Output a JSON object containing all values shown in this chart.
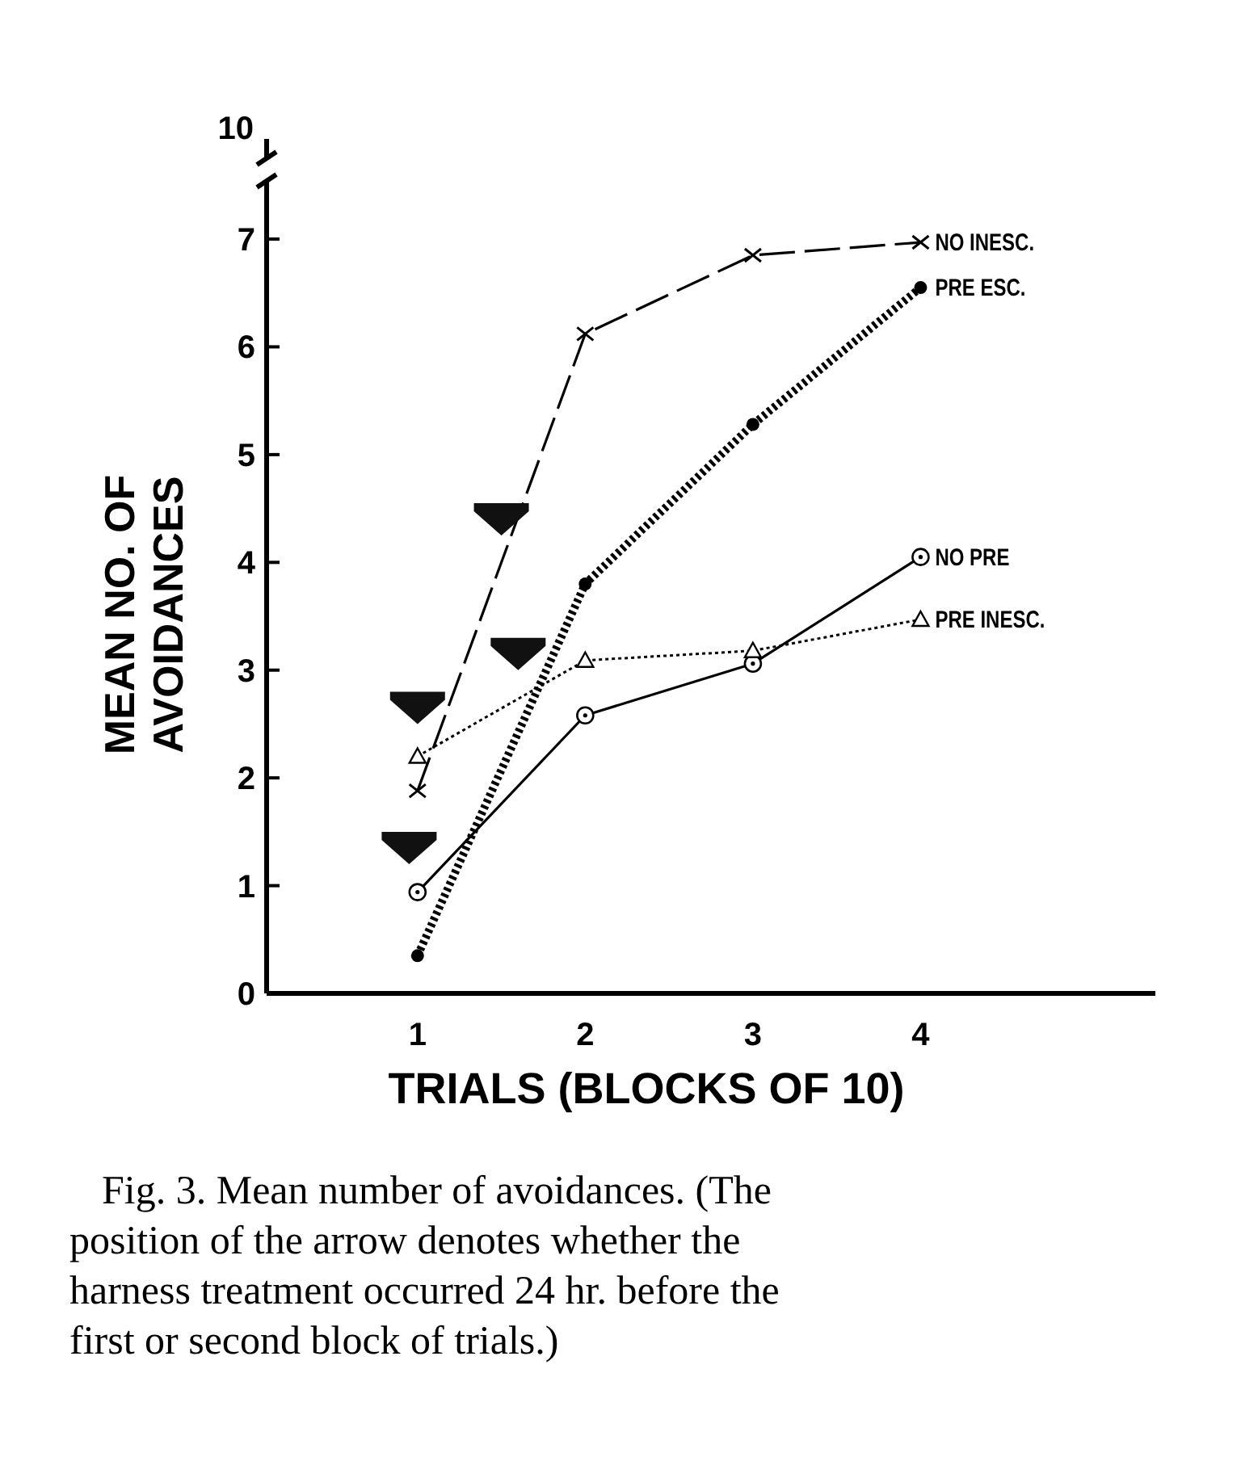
{
  "chart_data": {
    "type": "line",
    "xlabel": "TRIALS (BLOCKS OF 10)",
    "ylabel": "MEAN NO. OF AVOIDANCES",
    "x": [
      1,
      2,
      3,
      4
    ],
    "xlim": [
      0.1,
      5.4
    ],
    "xticks": [
      1,
      2,
      3,
      4
    ],
    "ylim": [
      0,
      7.3
    ],
    "yticks": [
      0,
      1,
      2,
      3,
      4,
      5,
      6,
      7
    ],
    "grid": false,
    "series": [
      {
        "name": "NO INESC.",
        "color": "#000000",
        "values": [
          1.88,
          6.12,
          6.85,
          6.97
        ],
        "marker": "cross",
        "line_style": "dashed"
      },
      {
        "name": "PRE ESC.",
        "color": "#000000",
        "values": [
          0.35,
          3.8,
          5.28,
          6.55
        ],
        "marker": "circle",
        "line_style": "dotted"
      },
      {
        "name": "NO PRE",
        "color": "#000000",
        "values": [
          0.94,
          2.58,
          3.06,
          4.05
        ],
        "marker": "circle",
        "line_style": "solid"
      },
      {
        "name": "PRE INESC.",
        "color": "#000000",
        "values": [
          2.2,
          3.09,
          3.18,
          3.47
        ],
        "marker": "triangle",
        "line_style": "dotted"
      }
    ],
    "annotations": [
      "10",
      "Fig. 3. Mean number of avoidances. (The position of the arrow denotes whether the harness treatment occurred 24 hr. before the first or second block of trials.)"
    ]
  }
}
